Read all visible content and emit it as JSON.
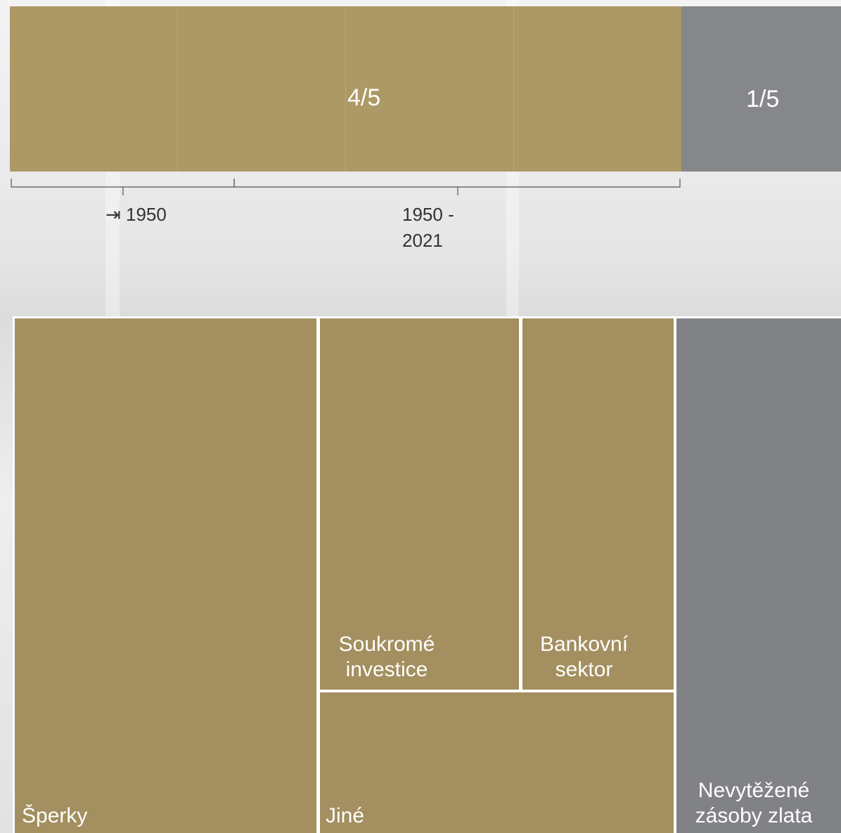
{
  "top_bar": {
    "share_main": "4/5",
    "share_rest": "1/5"
  },
  "periods": [
    {
      "label_lines": [
        "⇥ 1950"
      ]
    },
    {
      "label_lines": [
        "1950 -",
        "2021"
      ]
    }
  ],
  "treemap": {
    "blocks": [
      {
        "label_lines": [
          "Šperky"
        ]
      },
      {
        "label_lines": [
          "Soukromé",
          "investice"
        ]
      },
      {
        "label_lines": [
          "Bankovní",
          "sektor"
        ]
      },
      {
        "label_lines": [
          "Jiné"
        ]
      },
      {
        "label_lines": [
          "Nevytěžené",
          "zásoby zlata"
        ]
      }
    ]
  }
}
